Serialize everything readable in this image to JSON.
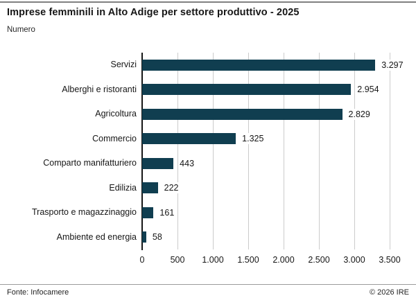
{
  "header": {
    "title": "Imprese femminili in Alto Adige per settore produttivo - 2025",
    "subtitle": "Numero"
  },
  "footer": {
    "source": "Fonte: Infocamere",
    "copyright": "© 2026 IRE"
  },
  "colors": {
    "bar": "#103e50",
    "gridline": "#cbcbcb",
    "axis": "#161616",
    "top_border": "#7f7f7f",
    "footer_divider": "#9a9a9a"
  },
  "chart_data": {
    "type": "bar",
    "orientation": "horizontal",
    "title": "Imprese femminili in Alto Adige per settore produttivo - 2025",
    "xlabel": "",
    "ylabel": "Numero",
    "categories": [
      "Servizi",
      "Alberghi e ristoranti",
      "Agricoltura",
      "Commercio",
      "Comparto manifatturiero",
      "Edilizia",
      "Trasporto e magazzinaggio",
      "Ambiente ed energia"
    ],
    "values": [
      3297,
      2954,
      2829,
      1325,
      443,
      222,
      161,
      58
    ],
    "value_labels": [
      "3.297",
      "2.954",
      "2.829",
      "1.325",
      "443",
      "222",
      "161",
      "58"
    ],
    "x_tick_values": [
      0,
      500,
      1000,
      1500,
      2000,
      2500,
      3000,
      3500
    ],
    "x_tick_labels": [
      "0",
      "500",
      "1.000",
      "1.500",
      "2.000",
      "2.500",
      "3.000",
      "3.500"
    ],
    "xlim": [
      0,
      3500
    ],
    "grid": true,
    "legend": false
  }
}
